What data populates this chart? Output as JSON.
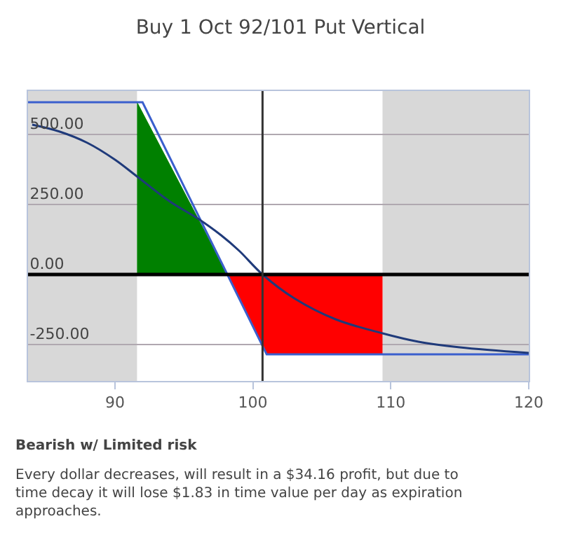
{
  "chart_data": {
    "type": "line",
    "title": "Buy 1 Oct 92/101 Put Vertical",
    "xlim": [
      83.7,
      120
    ],
    "xticks": [
      90,
      100,
      110,
      120
    ],
    "ylim": [
      -380,
      655
    ],
    "yticks": [
      {
        "value": -250,
        "label": "-250.00"
      },
      {
        "value": 0,
        "label": "0.00"
      },
      {
        "value": 250,
        "label": "250.00"
      },
      {
        "value": 500,
        "label": "500.00"
      }
    ],
    "grid": "y",
    "marker": "none",
    "series": [
      {
        "type": "area",
        "color": "#008000",
        "x": [
          91.6,
          98.15
        ],
        "values": [
          615,
          0
        ]
      },
      {
        "type": "area",
        "color": "#ff0000",
        "x": [
          98.15,
          101,
          109.4
        ],
        "values": [
          0,
          -285,
          -285
        ]
      },
      {
        "color": "#3a5fcd",
        "x": [
          83.7,
          92,
          101,
          120
        ],
        "values": [
          615,
          615,
          -285,
          -285
        ]
      },
      {
        "color": "#1f3a7a",
        "x": [
          84,
          86,
          88,
          90,
          91.6,
          94,
          96,
          97.7,
          99,
          100.7,
          103,
          106,
          109.4,
          112,
          115,
          120
        ],
        "values": [
          535,
          510,
          470,
          410,
          350,
          260,
          200,
          140,
          85,
          0,
          -85,
          -160,
          -210,
          -240,
          -260,
          -280
        ]
      }
    ],
    "bands": [
      {
        "axis": "x",
        "from": 83.7,
        "to": 91.6,
        "color": "#d8d8d8"
      },
      {
        "axis": "x",
        "from": 109.4,
        "to": 120,
        "color": "#d8d8d8"
      }
    ],
    "ref_lines": [
      {
        "axis": "y",
        "value": 0,
        "color": "#000000"
      },
      {
        "axis": "x",
        "value": 100.7,
        "color": "#333333"
      }
    ],
    "annotations": [
      "Bearish w/ Limited risk",
      "Every dollar decreases, will result in a $34.16 profit, but due to time decay it will lose $1.83 in time value per day as expiration approaches."
    ]
  }
}
